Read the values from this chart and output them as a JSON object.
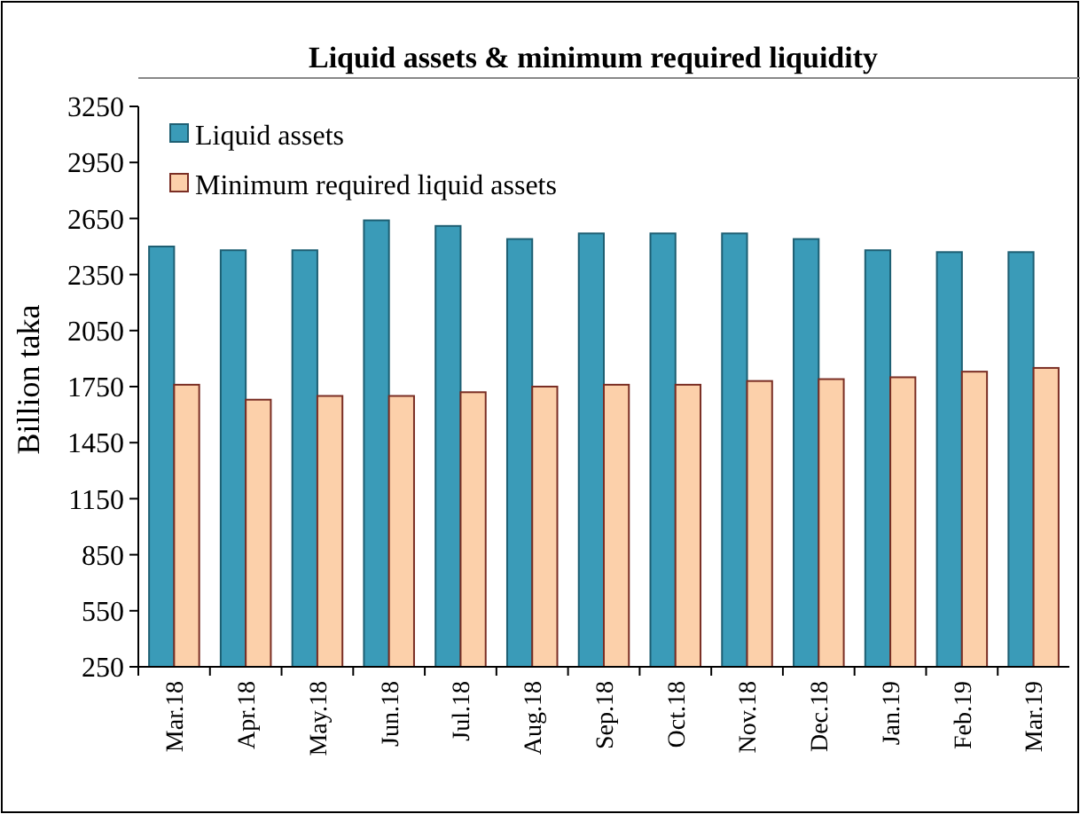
{
  "chart_data": {
    "type": "bar",
    "title": "Liquid assets & minimum required liquidity",
    "ylabel": "Billion taka",
    "categories": [
      "Mar.18",
      "Apr.18",
      "May.18",
      "Jun.18",
      "Jul.18",
      "Aug.18",
      "Sep.18",
      "Oct.18",
      "Nov.18",
      "Dec.18",
      "Jan.19",
      "Feb.19",
      "Mar.19"
    ],
    "series": [
      {
        "name": "Liquid assets",
        "color": "#3a9bb8",
        "values": [
          2500,
          2480,
          2480,
          2640,
          2610,
          2540,
          2570,
          2570,
          2570,
          2540,
          2480,
          2470,
          2470
        ]
      },
      {
        "name": "Minimum required liquid assets",
        "color": "#fcd0aa",
        "values": [
          1760,
          1680,
          1700,
          1700,
          1720,
          1750,
          1760,
          1760,
          1780,
          1790,
          1800,
          1830,
          1850
        ]
      }
    ],
    "ylim": [
      250,
      3250
    ],
    "yticks": [
      250,
      550,
      850,
      1150,
      1450,
      1750,
      2050,
      2350,
      2650,
      2950,
      3250
    ],
    "grid": false,
    "legend": "top left"
  }
}
